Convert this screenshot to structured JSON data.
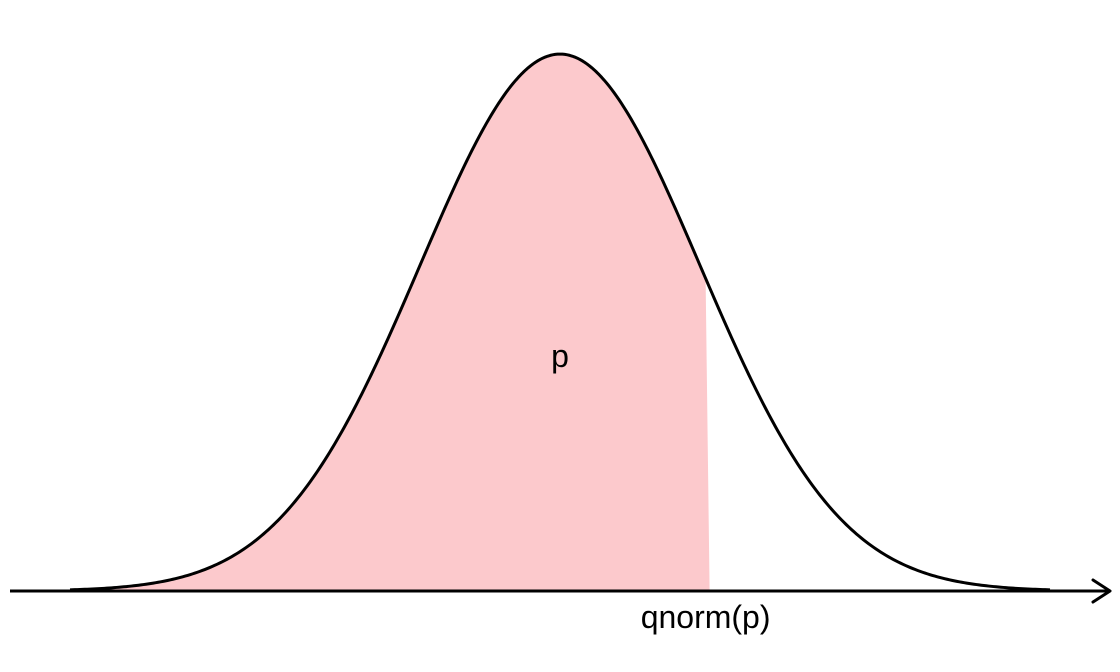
{
  "colors": {
    "area_fill": "#fcc9cc",
    "curve": "#000000",
    "axis": "#000000",
    "background": "#ffffff"
  },
  "chart_data": {
    "type": "area",
    "distribution": "normal",
    "mean": 0,
    "sd": 1,
    "xlim": [
      -3.5,
      3.5
    ],
    "ylim": [
      0,
      0.399
    ],
    "shaded_region": {
      "from": -3.5,
      "to": 1.04,
      "probability": 0.85
    },
    "area_label": "p",
    "cutoff_label": "qnorm(p)",
    "title": "",
    "xlabel": "",
    "ylabel": "",
    "grid": false,
    "legend": "none"
  }
}
